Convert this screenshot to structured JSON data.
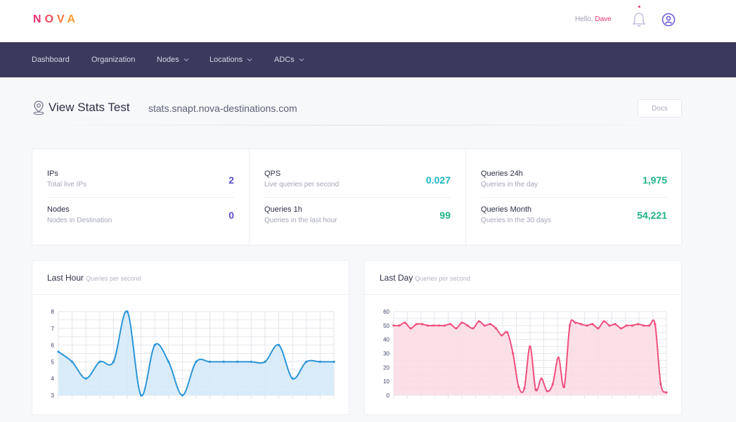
{
  "brand": {
    "letters": [
      "N",
      "O",
      "V",
      "A"
    ]
  },
  "header": {
    "greeting": "Hello,",
    "user_name": "Dave"
  },
  "nav": {
    "items": [
      {
        "label": "Dashboard",
        "dropdown": false
      },
      {
        "label": "Organization",
        "dropdown": false
      },
      {
        "label": "Nodes",
        "dropdown": true
      },
      {
        "label": "Locations",
        "dropdown": true
      },
      {
        "label": "ADCs",
        "dropdown": true
      }
    ]
  },
  "page": {
    "title": "View Stats Test",
    "domain": "stats.snapt.nova-destinations.com",
    "docs_label": "Docs"
  },
  "stats": [
    [
      {
        "label": "IPs",
        "desc": "Total live IPs",
        "value": "2",
        "color": "#5b4fc7"
      },
      {
        "label": "Nodes",
        "desc": "Nodes in Destination",
        "value": "0",
        "color": "#5b4fc7"
      }
    ],
    [
      {
        "label": "QPS",
        "desc": "Live queries per second",
        "value": "0.027",
        "color": "#1fb5c0"
      },
      {
        "label": "Queries 1h",
        "desc": "Queries in the last hour",
        "value": "99",
        "color": "#1db38a"
      }
    ],
    [
      {
        "label": "Queries 24h",
        "desc": "Queries in the day",
        "value": "1,975",
        "color": "#1db38a"
      },
      {
        "label": "Queries Month",
        "desc": "Queries in the 30 days",
        "value": "54,221",
        "color": "#1db38a"
      }
    ]
  ],
  "chart_data": [
    {
      "type": "area",
      "title": "Last Hour",
      "subtitle": "Queries per second",
      "ylim": [
        3,
        8
      ],
      "yticks": [
        3,
        4,
        5,
        6,
        7,
        8
      ],
      "grid": true,
      "color": "#2b95d8",
      "fill": "#d3e9f8",
      "values": [
        5.6,
        5.0,
        4.0,
        5.0,
        5.0,
        8.0,
        3.0,
        6.0,
        5.0,
        3.0,
        5.0,
        5.0,
        5.0,
        5.0,
        5.0,
        5.0,
        6.0,
        4.0,
        5.0,
        5.0,
        5.0
      ]
    },
    {
      "type": "area",
      "title": "Last Day",
      "subtitle": "Queries per second",
      "ylim": [
        0,
        60
      ],
      "yticks": [
        0,
        10,
        20,
        30,
        40,
        50,
        60
      ],
      "grid": true,
      "color": "#ee4f7c",
      "fill": "#fbdbe4",
      "values": [
        50,
        50,
        52,
        48,
        51,
        51,
        50,
        50,
        50,
        50,
        51,
        48,
        52,
        50,
        48,
        53,
        50,
        51,
        48,
        43,
        45,
        30,
        6,
        5,
        35,
        4,
        12,
        3,
        8,
        27,
        6,
        50,
        52,
        51,
        50,
        51,
        48,
        53,
        50,
        51,
        48,
        50,
        50,
        51,
        50,
        50,
        51,
        8,
        2
      ]
    }
  ]
}
